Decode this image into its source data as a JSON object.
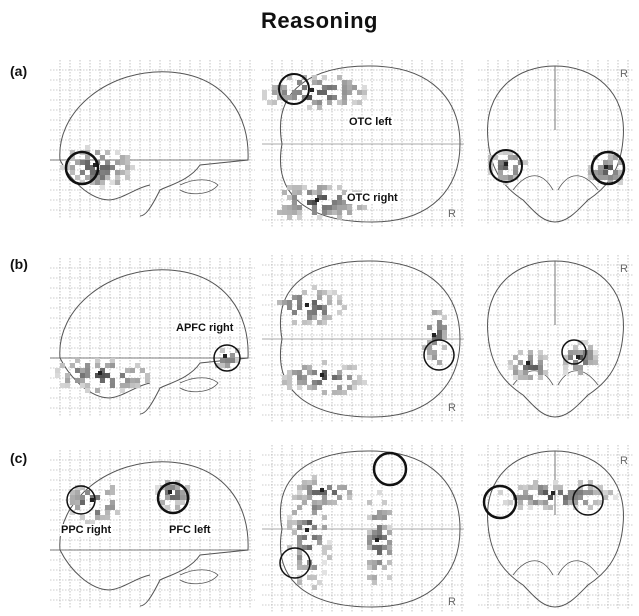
{
  "title": "Reasoning",
  "row_labels": [
    "(a)",
    "(b)",
    "(c)"
  ],
  "orientation_marker": "R",
  "annotations": {
    "otc_left": "OTC left",
    "otc_right": "OTC right",
    "apfc_right": "APFC right",
    "ppc_right": "PPC right",
    "pfc_left": "PFC left"
  },
  "colors": {
    "outline": "#555555",
    "grid": "#9a9a9a",
    "blob_dark": "#222222",
    "blob_light": "#bfbfbf"
  }
}
